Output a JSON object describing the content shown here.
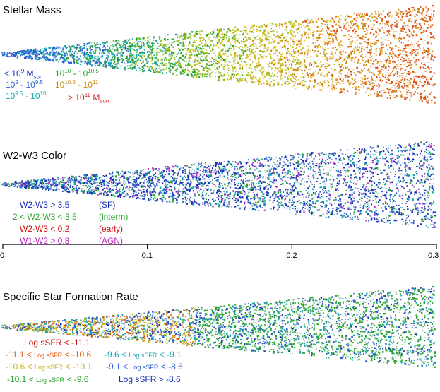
{
  "panels": {
    "mass": {
      "title": "Stellar Mass",
      "legend": [
        {
          "prefix": "< 10",
          "exp": "9",
          "mid": " M",
          "sub": "sun",
          "suffix": "",
          "color": "#1a2fb8"
        },
        {
          "prefix": "10",
          "exp": "9",
          "mid": " - 10",
          "exp2": "9.5",
          "color": "#2f5fd0"
        },
        {
          "prefix": "10",
          "exp": "9.5",
          "mid": " - 10",
          "exp2": "10",
          "color": "#18a7b0"
        },
        {
          "prefix": "10",
          "exp": "10",
          "mid": " - 10",
          "exp2": "10.5",
          "color": "#2aa52a"
        },
        {
          "prefix": "10",
          "exp": "10.5",
          "mid": " - 10",
          "exp2": "11",
          "color": "#d08a10"
        },
        {
          "prefix": "> 10",
          "exp": "11",
          "mid": " M",
          "sub": "sun",
          "color": "#e02020"
        }
      ]
    },
    "color": {
      "title": "W2-W3 Color",
      "legend": [
        {
          "text": "W2-W3 > 3.5",
          "tag": "(SF)",
          "color": "#1a2fb8"
        },
        {
          "text": "2 < W2-W3 < 3.5",
          "tag": "(interm)",
          "color": "#2aa52a"
        },
        {
          "text": "W2-W3 < 0.2",
          "tag": "(early)",
          "color": "#d01010"
        },
        {
          "text": "W1-W2 > 0.8",
          "tag": "(AGN)",
          "color": "#c020c0"
        }
      ]
    },
    "ssfr": {
      "title": "Specific Star Formation Rate",
      "legend_left": [
        {
          "parts": [
            "Log sSFR",
            "  < -11.1"
          ],
          "color": "#d01010"
        },
        {
          "parts": [
            "-11.1 < ",
            "Log sSFR",
            " < -10.6"
          ],
          "color": "#e05a10"
        },
        {
          "parts": [
            "-10.6 < ",
            "Log sSFR",
            " < -10.1"
          ],
          "color": "#c8b010"
        },
        {
          "parts": [
            "-10.1 < ",
            "Log sSFR",
            " < -9.6"
          ],
          "color": "#2aa52a"
        }
      ],
      "legend_right": [
        {
          "parts": [
            "-9.6 < ",
            "Log sSFR",
            "  < -9.1"
          ],
          "color": "#18a7b0"
        },
        {
          "parts": [
            "-9.1 < ",
            "Log sSFR",
            " < -8.6"
          ],
          "color": "#2f5fd0"
        },
        {
          "parts": [
            "Log sSFR",
            "  > -8.6"
          ],
          "color": "#1a2fb8"
        }
      ]
    }
  },
  "axis": {
    "ticks": [
      "0",
      "0.1",
      "0.2",
      "0.3"
    ],
    "range": [
      0,
      0.3
    ]
  },
  "colors": {
    "mass": [
      "#2f5fd0",
      "#18a7b0",
      "#2aa52a",
      "#a6c020",
      "#d8c020",
      "#d08a10",
      "#e05010"
    ],
    "w23": [
      "#1a2fb8",
      "#2f5fd0",
      "#18a7b0",
      "#2aa52a",
      "#c020c0"
    ],
    "ssfr": [
      "#2aa52a",
      "#18a7b0",
      "#2f5fd0",
      "#c8b010",
      "#e05a10",
      "#1a2fb8"
    ]
  }
}
